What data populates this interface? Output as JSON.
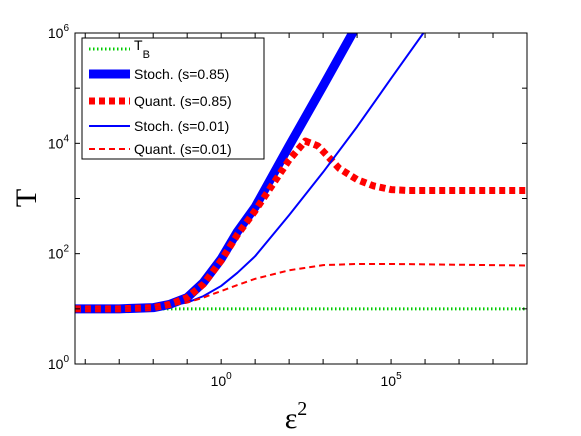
{
  "chart_data": {
    "type": "line",
    "xlabel": "ε",
    "xlabel_sup": "2",
    "ylabel": "T",
    "xscale": "log",
    "yscale": "log",
    "xlim": [
      5e-05,
      1000000000
    ],
    "ylim": [
      1,
      1000000
    ],
    "x_ticks": [
      {
        "value": 1,
        "base": "10",
        "exp": "0"
      },
      {
        "value": 100000,
        "base": "10",
        "exp": "5"
      }
    ],
    "y_ticks": [
      {
        "value": 1,
        "base": "10",
        "exp": "0"
      },
      {
        "value": 100,
        "base": "10",
        "exp": "2"
      },
      {
        "value": 10000,
        "base": "10",
        "exp": "4"
      },
      {
        "value": 1000000,
        "base": "10",
        "exp": "6"
      }
    ],
    "grid": false,
    "legend_position": "top-left",
    "series": [
      {
        "name": "T",
        "name_sub": "B",
        "color": "#00cc00",
        "style": "dotted",
        "x": [
          5e-05,
          1000000000
        ],
        "y": [
          10,
          10
        ]
      },
      {
        "name": "Stoch. (s=0.85)",
        "color": "#0000ff",
        "style": "solid-thick",
        "x": [
          5e-05,
          0.001,
          0.01,
          0.03,
          0.1,
          0.3,
          1,
          3,
          10,
          100,
          1000,
          10000
        ],
        "y": [
          10,
          10,
          10.5,
          12,
          16,
          30,
          80,
          250,
          700,
          9000,
          110000,
          1400000
        ]
      },
      {
        "name": "Quant. (s=0.85)",
        "color": "#ff0000",
        "style": "dotted-thick",
        "x": [
          5e-05,
          0.001,
          0.01,
          0.03,
          0.1,
          0.3,
          1,
          3,
          10,
          100,
          300,
          700,
          1500,
          3000,
          10000,
          30000,
          100000,
          300000,
          1000000,
          10000000,
          100000000,
          1000000000
        ],
        "y": [
          10,
          10,
          10.5,
          12,
          16,
          28,
          75,
          220,
          600,
          5000,
          11000,
          9000,
          5500,
          3500,
          2200,
          1700,
          1450,
          1400,
          1400,
          1400,
          1400,
          1400
        ]
      },
      {
        "name": "Stoch. (s=0.01)",
        "color": "#0000ff",
        "style": "solid",
        "x": [
          5e-05,
          0.001,
          0.01,
          0.1,
          0.3,
          1,
          3,
          10,
          100,
          1000,
          10000,
          100000,
          1000000
        ],
        "y": [
          10,
          10,
          10.3,
          13,
          17,
          26,
          45,
          90,
          500,
          3000,
          20000,
          150000,
          1100000
        ]
      },
      {
        "name": "Quant. (s=0.01)",
        "color": "#ff0000",
        "style": "dashed",
        "x": [
          5e-05,
          0.001,
          0.01,
          0.1,
          0.3,
          1,
          3,
          10,
          100,
          1000,
          10000,
          100000,
          1000000,
          10000000,
          100000000,
          1000000000
        ],
        "y": [
          10,
          10,
          10.3,
          13,
          16,
          21,
          27,
          35,
          50,
          62,
          65,
          65,
          64,
          63,
          62,
          61
        ]
      }
    ]
  }
}
